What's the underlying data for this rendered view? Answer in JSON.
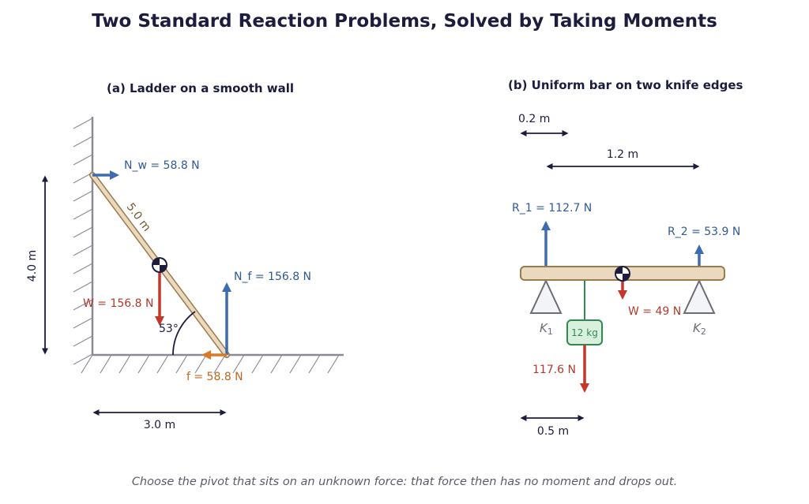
{
  "title": "Two Standard Reaction Problems, Solved by Taking Moments",
  "caption": "Choose the pivot that sits on an unknown force: that force then has no moment and drops out.",
  "colors": {
    "navy": "#1c1c3f",
    "reaction_blue": "#3e6cb0",
    "weight_red": "#c0392b",
    "friction_orange": "#d97a2b",
    "load_green": "#2f8a4f",
    "bar_fill": "#ead9bf",
    "bar_stroke": "#9a7b4a"
  },
  "panel_a": {
    "title": "(a) Ladder on a smooth wall",
    "ladder_length": "5.0 m",
    "height": "4.0 m",
    "base": "3.0 m",
    "angle": "53°",
    "wall_reaction": "N_w = 58.8 N",
    "floor_reaction": "N_f = 156.8 N",
    "weight": "W = 156.8 N",
    "friction": "f = 58.8 N"
  },
  "panel_b": {
    "title": "(b) Uniform bar on two knife edges",
    "overhang": "0.2 m",
    "span": "1.2 m",
    "load_offset": "0.5 m",
    "r1": "R_1 = 112.7 N",
    "r2": "R_2 = 53.9 N",
    "weight": "W = 49 N",
    "load_mass": "12 kg",
    "load_force": "117.6 N",
    "support_1": "K_1",
    "support_2": "K_2"
  }
}
